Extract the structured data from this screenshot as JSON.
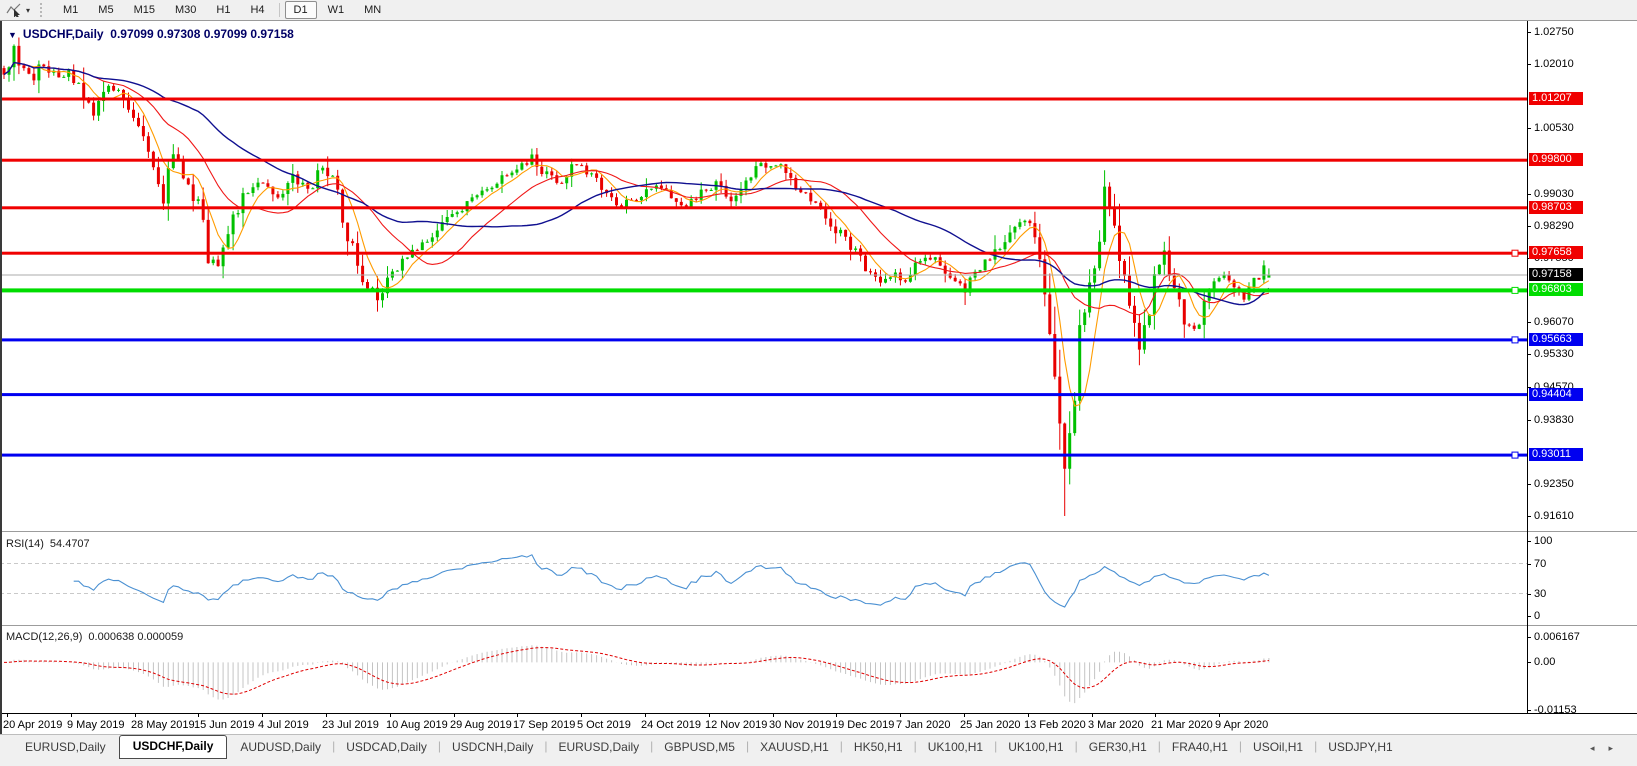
{
  "toolbar": {
    "timeframes": [
      "M1",
      "M5",
      "M15",
      "M30",
      "H1",
      "H4",
      "D1",
      "W1",
      "MN"
    ],
    "active_timeframe": "D1",
    "cursor_tool_caret": "▾"
  },
  "chart": {
    "title": {
      "marker": "▼",
      "symbol": "USDCHF,Daily",
      "ohlc": "0.97099 0.97308 0.97099 0.97158"
    }
  },
  "rsi": {
    "label": "RSI(14)",
    "value": "54.4707",
    "axis_ticks": [
      "100",
      "70",
      "30",
      "0"
    ],
    "guide_levels": [
      70,
      30
    ],
    "line_color": "#4a90d2"
  },
  "macd": {
    "label": "MACD(12,26,9)",
    "value": "0.000638 0.000059",
    "axis_ticks": [
      "0.006167",
      "0.00",
      "-0.01153"
    ],
    "hist_color": "#c4c4c4",
    "signal_color": "#e00000"
  },
  "tabs": {
    "items": [
      "EURUSD,Daily",
      "USDCHF,Daily",
      "AUDUSD,Daily",
      "USDCAD,Daily",
      "USDCNH,Daily",
      "EURUSD,Daily",
      "GBPUSD,M5",
      "XAUUSD,H1",
      "HK50,H1",
      "UK100,H1",
      "UK100,H1",
      "GER30,H1",
      "FRA40,H1",
      "USOil,H1",
      "USDJPY,H1"
    ],
    "active_index": 1,
    "separator": "|",
    "scroll_left": "◂",
    "scroll_right": "▸"
  },
  "chart_data": {
    "type": "candlestick",
    "symbol": "USDCHF",
    "timeframe": "Daily",
    "last_candle": {
      "open": 0.97099,
      "high": 0.97308,
      "low": 0.97099,
      "close": 0.97158
    },
    "min_low": 0.9161,
    "n_candles": 255,
    "price_axis_ticks": [
      "1.02750",
      "1.02010",
      "1.00530",
      "0.99030",
      "0.98290",
      "0.97550",
      "0.96070",
      "0.95330",
      "0.94570",
      "0.93830",
      "0.92350",
      "0.91610"
    ],
    "ylim": [
      0.9161,
      1.0275
    ],
    "levels": [
      {
        "label": "1.01207",
        "price": 1.01207,
        "color": "#f00000",
        "handle": false
      },
      {
        "label": "0.99800",
        "price": 0.998,
        "color": "#f00000",
        "handle": false
      },
      {
        "label": "0.98703",
        "price": 0.98703,
        "color": "#f00000",
        "handle": false
      },
      {
        "label": "0.97658",
        "price": 0.97658,
        "color": "#f00000",
        "handle": true
      },
      {
        "label": "0.96803",
        "price": 0.96803,
        "color": "#00dd00",
        "handle": true
      },
      {
        "label": "0.95663",
        "price": 0.95663,
        "color": "#0000f0",
        "handle": true
      },
      {
        "label": "0.94404",
        "price": 0.94404,
        "color": "#0000f0",
        "handle": false
      },
      {
        "label": "0.93011",
        "price": 0.93011,
        "color": "#0000f0",
        "handle": true
      }
    ],
    "current_price": {
      "label": "0.97158",
      "price": 0.97158
    },
    "date_labels": [
      "20 Apr 2019",
      "9 May 2019",
      "28 May 2019",
      "15 Jun 2019",
      "4 Jul 2019",
      "23 Jul 2019",
      "10 Aug 2019",
      "29 Aug 2019",
      "17 Sep 2019",
      "5 Oct 2019",
      "24 Oct 2019",
      "12 Nov 2019",
      "30 Nov 2019",
      "19 Dec 2019",
      "7 Jan 2020",
      "25 Jan 2020",
      "13 Feb 2020",
      "3 Mar 2020",
      "21 Mar 2020",
      "9 Apr 2020"
    ],
    "price_path": [
      [
        0,
        1.0185
      ],
      [
        2,
        1.0228
      ],
      [
        4,
        1.0195
      ],
      [
        6,
        1.017
      ],
      [
        8,
        1.0208
      ],
      [
        11,
        1.016
      ],
      [
        13,
        1.0188
      ],
      [
        15,
        1.0152
      ],
      [
        18,
        1.0095
      ],
      [
        21,
        1.0148
      ],
      [
        24,
        1.0128
      ],
      [
        27,
        1.0058
      ],
      [
        30,
        0.9958
      ],
      [
        32,
        0.9898
      ],
      [
        34,
        0.999
      ],
      [
        36,
        0.9944
      ],
      [
        39,
        0.9878
      ],
      [
        41,
        0.9768
      ],
      [
        43,
        0.9726
      ],
      [
        45,
        0.983
      ],
      [
        48,
        0.989
      ],
      [
        52,
        0.993
      ],
      [
        55,
        0.9898
      ],
      [
        58,
        0.994
      ],
      [
        61,
        0.9906
      ],
      [
        64,
        0.9966
      ],
      [
        66,
        0.9936
      ],
      [
        69,
        0.981
      ],
      [
        72,
        0.97
      ],
      [
        75,
        0.9668
      ],
      [
        78,
        0.9712
      ],
      [
        81,
        0.9764
      ],
      [
        84,
        0.979
      ],
      [
        87,
        0.9824
      ],
      [
        90,
        0.9856
      ],
      [
        93,
        0.988
      ],
      [
        96,
        0.9906
      ],
      [
        99,
        0.993
      ],
      [
        103,
        0.9964
      ],
      [
        106,
        0.9986
      ],
      [
        109,
        0.9946
      ],
      [
        112,
        0.9926
      ],
      [
        115,
        0.9976
      ],
      [
        118,
        0.9946
      ],
      [
        121,
        0.9906
      ],
      [
        124,
        0.9876
      ],
      [
        128,
        0.9896
      ],
      [
        131,
        0.9926
      ],
      [
        134,
        0.9892
      ],
      [
        137,
        0.9876
      ],
      [
        140,
        0.9906
      ],
      [
        143,
        0.9926
      ],
      [
        146,
        0.9896
      ],
      [
        149,
        0.9936
      ],
      [
        152,
        0.9966
      ],
      [
        155,
        0.9972
      ],
      [
        158,
        0.9932
      ],
      [
        161,
        0.9902
      ],
      [
        164,
        0.9866
      ],
      [
        167,
        0.9822
      ],
      [
        170,
        0.9782
      ],
      [
        173,
        0.9736
      ],
      [
        176,
        0.9696
      ],
      [
        178,
        0.9722
      ],
      [
        181,
        0.9706
      ],
      [
        184,
        0.9752
      ],
      [
        187,
        0.9756
      ],
      [
        190,
        0.9716
      ],
      [
        193,
        0.9682
      ],
      [
        196,
        0.9732
      ],
      [
        199,
        0.9772
      ],
      [
        202,
        0.9812
      ],
      [
        205,
        0.9852
      ],
      [
        207,
        0.9802
      ],
      [
        209,
        0.9692
      ],
      [
        211,
        0.9482
      ],
      [
        212,
        0.9362
      ],
      [
        213,
        0.9242
      ],
      [
        214,
        0.933
      ],
      [
        215,
        0.9462
      ],
      [
        216,
        0.9572
      ],
      [
        218,
        0.9702
      ],
      [
        220,
        0.9822
      ],
      [
        221,
        0.9892
      ],
      [
        222,
        0.9852
      ],
      [
        224,
        0.9752
      ],
      [
        226,
        0.9642
      ],
      [
        228,
        0.9546
      ],
      [
        230,
        0.9642
      ],
      [
        232,
        0.9746
      ],
      [
        233,
        0.9772
      ],
      [
        235,
        0.9692
      ],
      [
        237,
        0.9612
      ],
      [
        239,
        0.9582
      ],
      [
        241,
        0.9642
      ],
      [
        243,
        0.9692
      ],
      [
        245,
        0.9722
      ],
      [
        247,
        0.9692
      ],
      [
        249,
        0.9666
      ],
      [
        251,
        0.9702
      ],
      [
        253,
        0.9732
      ],
      [
        254,
        0.9716
      ]
    ],
    "moving_averages": [
      {
        "period": 6,
        "color": "#ff9c00",
        "width": 1.1
      },
      {
        "period": 18,
        "color": "#f01818",
        "width": 1.1
      },
      {
        "period": 40,
        "color": "#101090",
        "width": 1.4
      }
    ],
    "candle_colors": {
      "up": "#00c000",
      "down": "#e80000"
    },
    "rsi_period": 14,
    "macd_params": [
      12,
      26,
      9
    ]
  }
}
